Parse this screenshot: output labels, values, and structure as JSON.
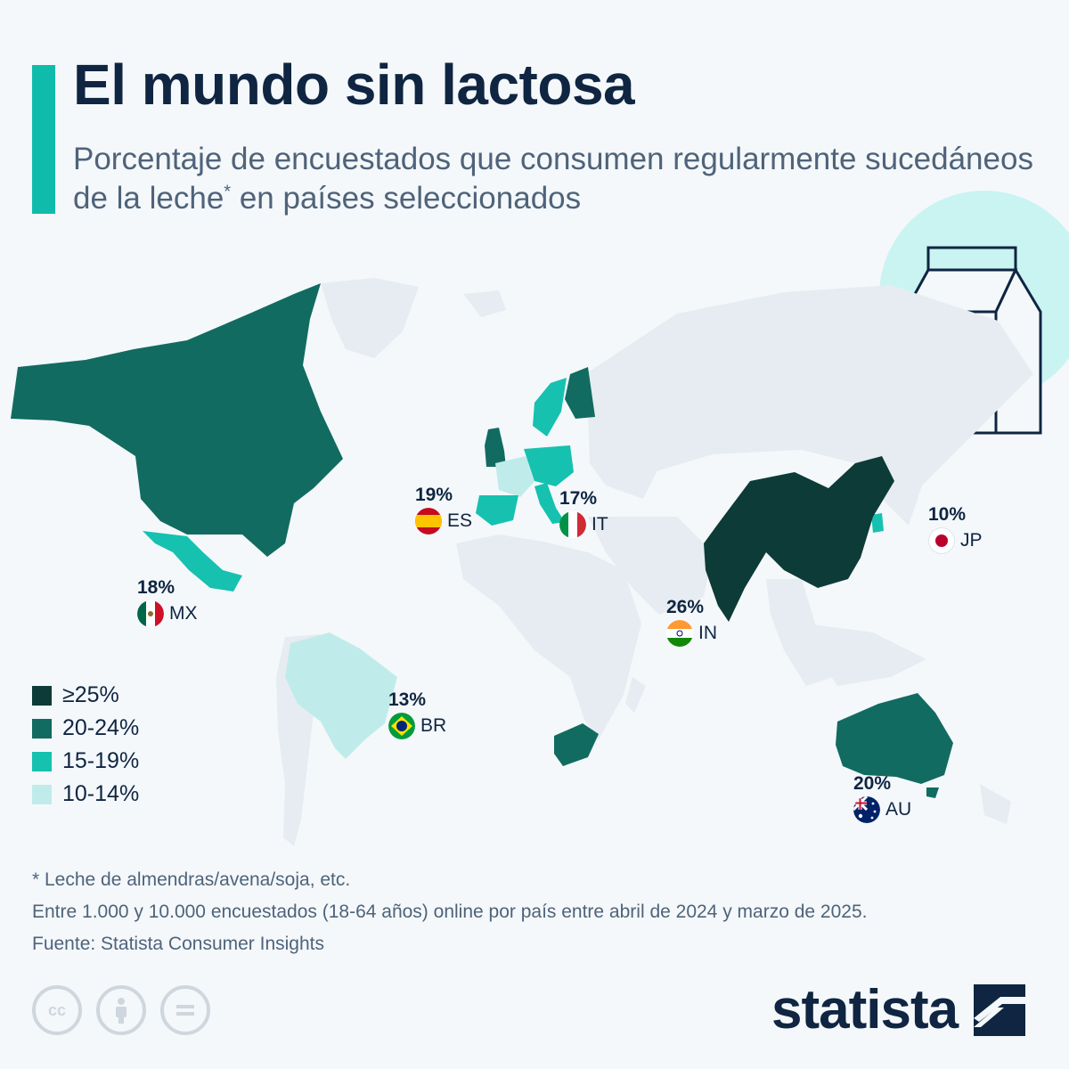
{
  "header": {
    "title": "El mundo sin lactosa",
    "subtitle_part1": "Porcentaje de encuestados que consumen regularmente sucedáneos de la leche",
    "subtitle_sup": "*",
    "subtitle_part2": " en países seleccionados"
  },
  "colors": {
    "accent": "#0fbcac",
    "title": "#0f2541",
    "land_no_data": "#e6ecf1",
    "bin_25_plus": "#0d3b37",
    "bin_20_24": "#126b60",
    "bin_15_19": "#16c1b0",
    "bin_10_14": "#bfecea"
  },
  "legend": [
    {
      "label": "≥25%",
      "color": "#0d3b37"
    },
    {
      "label": "20-24%",
      "color": "#126b60"
    },
    {
      "label": "15-19%",
      "color": "#16c1b0"
    },
    {
      "label": "10-14%",
      "color": "#bfecea"
    }
  ],
  "countries": [
    {
      "code": "ES",
      "pct": "19%",
      "value": 19,
      "bin": "15-19%",
      "flag": "spain-flag-icon"
    },
    {
      "code": "IT",
      "pct": "17%",
      "value": 17,
      "bin": "15-19%",
      "flag": "italy-flag-icon"
    },
    {
      "code": "MX",
      "pct": "18%",
      "value": 18,
      "bin": "15-19%",
      "flag": "mexico-flag-icon"
    },
    {
      "code": "IN",
      "pct": "26%",
      "value": 26,
      "bin": "≥25%",
      "flag": "india-flag-icon"
    },
    {
      "code": "JP",
      "pct": "10%",
      "value": 10,
      "bin": "10-14%",
      "flag": "japan-flag-icon"
    },
    {
      "code": "BR",
      "pct": "13%",
      "value": 13,
      "bin": "10-14%",
      "flag": "brazil-flag-icon"
    },
    {
      "code": "AU",
      "pct": "20%",
      "value": 20,
      "bin": "20-24%",
      "flag": "australia-flag-icon"
    }
  ],
  "footnotes": {
    "line1": "* Leche de almendras/avena/soja, etc.",
    "line2": "Entre 1.000 y 10.000 encuestados (18-64 años) online por país entre abril de 2024 y marzo de 2025.",
    "line3": "Fuente: Statista Consumer Insights"
  },
  "license_icons": [
    "cc-icon",
    "attribution-icon",
    "no-derivatives-icon"
  ],
  "brand": {
    "name": "statista"
  }
}
